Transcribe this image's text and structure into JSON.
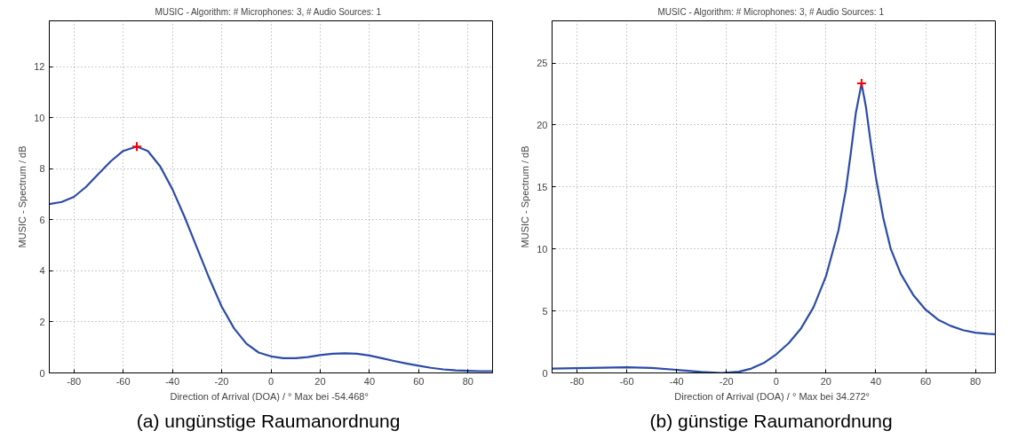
{
  "chart_data": [
    {
      "type": "line",
      "title": "MUSIC - Algorithm:  # Microphones: 3,  # Audio Sources: 1",
      "xlabel": "Direction of Arrival (DOA) / °  Max bei -54.468°",
      "ylabel": "MUSIC - Spectrum / dB",
      "annotations": [
        "(a)  ungünstige Raumanordnung"
      ],
      "xlim": [
        -90,
        90
      ],
      "ylim": [
        0,
        13.8
      ],
      "xticks": [
        -80,
        -60,
        -40,
        -20,
        0,
        20,
        40,
        60,
        80
      ],
      "yticks": [
        0,
        2,
        4,
        6,
        8,
        10,
        12
      ],
      "grid": true,
      "series": [
        {
          "color": "#2b4ca6",
          "x": [
            -90,
            -85,
            -80,
            -75,
            -70,
            -65,
            -60,
            -54.468,
            -50,
            -45,
            -40,
            -35,
            -30,
            -25,
            -20,
            -15,
            -10,
            -5,
            0,
            5,
            10,
            15,
            20,
            25,
            30,
            35,
            40,
            45,
            50,
            55,
            60,
            65,
            70,
            75,
            80,
            85,
            90
          ],
          "values": [
            6.62,
            6.7,
            6.9,
            7.3,
            7.8,
            8.3,
            8.7,
            8.87,
            8.7,
            8.1,
            7.2,
            6.1,
            4.9,
            3.7,
            2.6,
            1.75,
            1.15,
            0.8,
            0.65,
            0.58,
            0.58,
            0.62,
            0.7,
            0.75,
            0.77,
            0.75,
            0.68,
            0.58,
            0.47,
            0.37,
            0.28,
            0.2,
            0.14,
            0.1,
            0.08,
            0.07,
            0.07
          ]
        },
        {
          "type": "scatter",
          "marker": "cross",
          "color": "#ff0000",
          "x": [
            -54.468
          ],
          "values": [
            8.87
          ]
        }
      ]
    },
    {
      "type": "line",
      "title": "MUSIC - Algorithm:  # Microphones: 3,  # Audio Sources: 1",
      "xlabel": "Direction of Arrival (DOA) / °  Max bei 34.272°",
      "ylabel": "MUSIC - Spectrum / dB",
      "annotations": [
        "(b)  günstige Raumanordnung"
      ],
      "xlim": [
        -90,
        88
      ],
      "ylim": [
        0,
        28.4
      ],
      "xticks": [
        -80,
        -60,
        -40,
        -20,
        0,
        20,
        40,
        60,
        80
      ],
      "yticks": [
        0,
        5,
        10,
        15,
        20,
        25
      ],
      "grid": true,
      "series": [
        {
          "color": "#2b4ca6",
          "x": [
            -90,
            -80,
            -70,
            -60,
            -50,
            -40,
            -30,
            -22,
            -15,
            -10,
            -5,
            0,
            5,
            10,
            15,
            20,
            25,
            28,
            30,
            32,
            34.272,
            36,
            38,
            40,
            43,
            46,
            50,
            55,
            60,
            65,
            70,
            75,
            80,
            85,
            88
          ],
          "values": [
            0.35,
            0.38,
            0.42,
            0.45,
            0.4,
            0.25,
            0.08,
            0.0,
            0.1,
            0.35,
            0.8,
            1.5,
            2.4,
            3.6,
            5.3,
            7.8,
            11.5,
            14.8,
            17.8,
            21,
            23.35,
            21.5,
            18.5,
            15.8,
            12.5,
            10.0,
            8.0,
            6.3,
            5.1,
            4.3,
            3.8,
            3.45,
            3.25,
            3.15,
            3.12
          ]
        },
        {
          "type": "scatter",
          "marker": "cross",
          "color": "#ff0000",
          "x": [
            34.272
          ],
          "values": [
            23.35
          ]
        }
      ]
    }
  ]
}
